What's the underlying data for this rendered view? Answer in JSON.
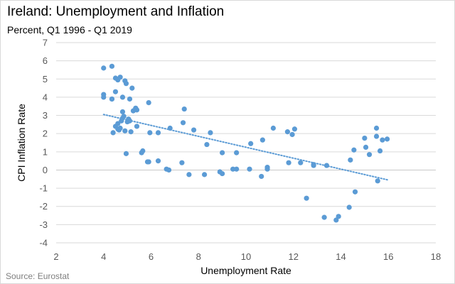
{
  "chart_data": {
    "type": "scatter",
    "title": "Ireland: Unemployment  and Inflation",
    "subtitle": "Percent, Q1 1996 - Q1 2019",
    "xlabel": "Unemployment  Rate",
    "ylabel": "CPI Inflation Rate",
    "source": "Source: Eurostat",
    "xlim": [
      2,
      18
    ],
    "ylim": [
      -4,
      7
    ],
    "xticks": [
      2,
      4,
      6,
      8,
      10,
      12,
      14,
      16,
      18
    ],
    "yticks": [
      -4,
      -3,
      -2,
      -1,
      0,
      1,
      2,
      3,
      4,
      5,
      6,
      7
    ],
    "grid": "horizontal",
    "legend": "none",
    "marker_color": "#5b9bd5",
    "trendline": {
      "type": "linear",
      "style": "dotted",
      "color": "#5b9bd5",
      "x_start": 4.0,
      "y_start": 3.05,
      "x_end": 16.0,
      "y_end": -0.55
    },
    "points": [
      [
        4.0,
        5.6
      ],
      [
        4.0,
        4.0
      ],
      [
        4.0,
        4.15
      ],
      [
        4.35,
        5.7
      ],
      [
        4.35,
        3.9
      ],
      [
        4.35,
        3.9
      ],
      [
        4.5,
        5.05
      ],
      [
        4.5,
        4.3
      ],
      [
        4.6,
        4.95
      ],
      [
        4.7,
        5.1
      ],
      [
        4.8,
        4.0
      ],
      [
        4.9,
        4.9
      ],
      [
        4.95,
        4.75
      ],
      [
        5.1,
        3.9
      ],
      [
        5.2,
        4.5
      ],
      [
        4.4,
        2.05
      ],
      [
        4.5,
        2.4
      ],
      [
        4.6,
        2.25
      ],
      [
        4.6,
        2.55
      ],
      [
        4.65,
        2.2
      ],
      [
        4.7,
        2.3
      ],
      [
        4.75,
        2.7
      ],
      [
        4.8,
        2.85
      ],
      [
        4.8,
        3.2
      ],
      [
        4.85,
        2.95
      ],
      [
        4.9,
        2.15
      ],
      [
        5.0,
        2.65
      ],
      [
        5.05,
        2.8
      ],
      [
        5.1,
        2.7
      ],
      [
        5.15,
        2.1
      ],
      [
        5.25,
        3.25
      ],
      [
        5.35,
        3.4
      ],
      [
        5.4,
        3.3
      ],
      [
        5.4,
        2.4
      ],
      [
        4.95,
        0.9
      ],
      [
        5.6,
        0.95
      ],
      [
        5.65,
        1.05
      ],
      [
        5.85,
        0.45
      ],
      [
        5.9,
        0.45
      ],
      [
        5.9,
        3.7
      ],
      [
        5.95,
        2.05
      ],
      [
        6.3,
        2.05
      ],
      [
        6.3,
        0.5
      ],
      [
        6.65,
        0.05
      ],
      [
        6.75,
        0.0
      ],
      [
        6.8,
        2.3
      ],
      [
        7.3,
        0.4
      ],
      [
        7.35,
        2.6
      ],
      [
        7.4,
        3.35
      ],
      [
        7.6,
        -0.25
      ],
      [
        7.8,
        2.2
      ],
      [
        8.25,
        -0.25
      ],
      [
        8.35,
        1.4
      ],
      [
        8.5,
        2.05
      ],
      [
        8.9,
        -0.1
      ],
      [
        9.0,
        0.95
      ],
      [
        9.0,
        -0.2
      ],
      [
        9.45,
        0.05
      ],
      [
        9.6,
        0.05
      ],
      [
        9.6,
        0.95
      ],
      [
        10.15,
        0.05
      ],
      [
        10.2,
        1.45
      ],
      [
        10.65,
        -0.35
      ],
      [
        10.7,
        1.65
      ],
      [
        10.9,
        0.05
      ],
      [
        10.9,
        0.15
      ],
      [
        11.15,
        2.3
      ],
      [
        11.75,
        2.1
      ],
      [
        11.8,
        0.4
      ],
      [
        11.95,
        1.95
      ],
      [
        12.05,
        2.25
      ],
      [
        12.3,
        0.4
      ],
      [
        12.55,
        -1.55
      ],
      [
        12.85,
        0.3
      ],
      [
        12.85,
        0.25
      ],
      [
        13.3,
        -2.6
      ],
      [
        13.4,
        0.25
      ],
      [
        13.8,
        -2.75
      ],
      [
        13.9,
        -2.55
      ],
      [
        14.35,
        -2.05
      ],
      [
        14.4,
        0.55
      ],
      [
        14.55,
        1.1
      ],
      [
        14.6,
        -1.2
      ],
      [
        15.0,
        1.75
      ],
      [
        15.05,
        1.25
      ],
      [
        15.2,
        0.85
      ],
      [
        15.5,
        2.3
      ],
      [
        15.5,
        1.85
      ],
      [
        15.55,
        -0.6
      ],
      [
        15.65,
        1.05
      ],
      [
        15.75,
        1.65
      ],
      [
        15.95,
        1.7
      ]
    ]
  }
}
